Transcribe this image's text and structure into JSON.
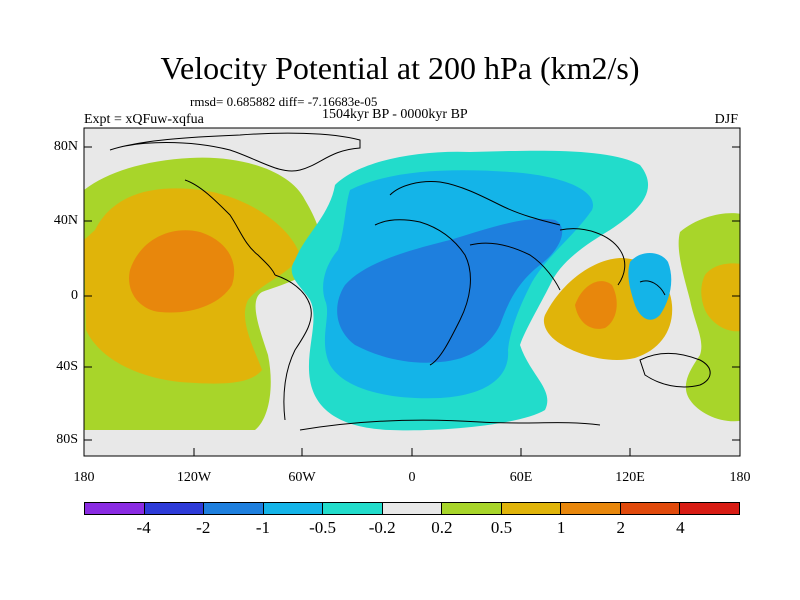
{
  "title": "Velocity Potential at 200 hPa (km2/s)",
  "stats": "rmsd= 0.685882  diff= -7.16683e-05",
  "period": "1504kyr BP - 0000kyr BP",
  "expt": "Expt = xQFuw-xqfua",
  "season": "DJF",
  "lat_labels": [
    "80N",
    "40N",
    "0",
    "40S",
    "80S"
  ],
  "lon_labels": [
    "180",
    "120W",
    "60W",
    "0",
    "60E",
    "120E",
    "180"
  ],
  "colorbar": {
    "labels": [
      "-4",
      "-2",
      "-1",
      "-0.5",
      "-0.2",
      "0.2",
      "0.5",
      "1",
      "2",
      "4"
    ],
    "colors": [
      "#8a2be2",
      "#2d3bd8",
      "#1e7fde",
      "#14b4e8",
      "#22dccb",
      "#e8e8e8",
      "#a8d52a",
      "#e0b40a",
      "#e8870c",
      "#e14a0c",
      "#d81c14"
    ]
  },
  "map_colors": {
    "neutral": "#e8e8e8",
    "pos1": "#a8d52a",
    "pos2": "#e0b40a",
    "pos3": "#e8870c",
    "neg1": "#22dccb",
    "neg2": "#14b4e8",
    "neg3": "#1e7fde"
  }
}
